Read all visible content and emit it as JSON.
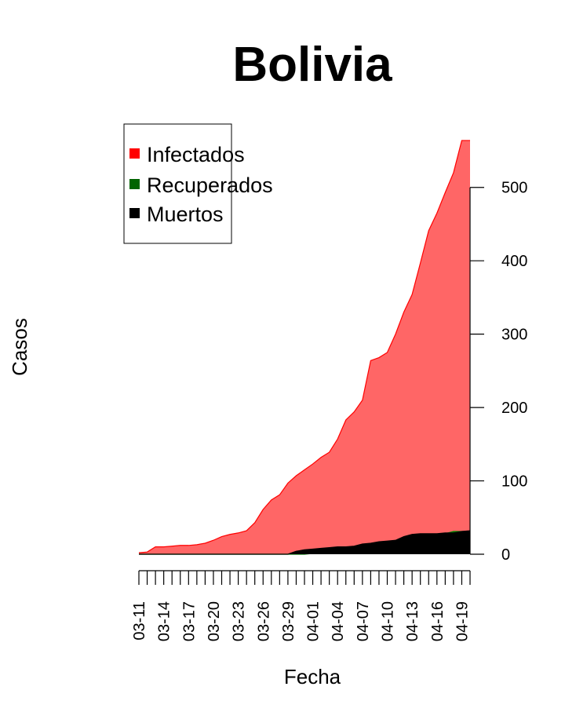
{
  "chart_data": {
    "type": "area",
    "title": "Bolivia",
    "xlabel": "Fecha",
    "ylabel": "Casos",
    "x": [
      "03-11",
      "03-12",
      "03-13",
      "03-14",
      "03-15",
      "03-16",
      "03-17",
      "03-18",
      "03-19",
      "03-20",
      "03-21",
      "03-22",
      "03-23",
      "03-24",
      "03-25",
      "03-26",
      "03-27",
      "03-28",
      "03-29",
      "03-30",
      "03-31",
      "04-01",
      "04-02",
      "04-03",
      "04-04",
      "04-05",
      "04-06",
      "04-07",
      "04-08",
      "04-09",
      "04-10",
      "04-11",
      "04-12",
      "04-13",
      "04-14",
      "04-15",
      "04-16",
      "04-17",
      "04-18",
      "04-19",
      "04-20"
    ],
    "x_tick_labels": [
      "03-11",
      "03-14",
      "03-17",
      "03-20",
      "03-23",
      "03-26",
      "03-29",
      "04-01",
      "04-04",
      "04-07",
      "04-10",
      "04-13",
      "04-16",
      "04-19"
    ],
    "y_ticks": [
      0,
      100,
      200,
      300,
      400,
      500
    ],
    "ylim": [
      0,
      565
    ],
    "y_axis_side": "right",
    "grid": false,
    "legend_position": "top-left",
    "series": [
      {
        "name": "Infectados",
        "color": "#FF0000",
        "fill": "#FF6666",
        "values": [
          2,
          3,
          10,
          10,
          11,
          12,
          12,
          13,
          15,
          19,
          24,
          27,
          29,
          32,
          43,
          61,
          74,
          81,
          97,
          107,
          115,
          123,
          132,
          139,
          157,
          183,
          194,
          210,
          264,
          268,
          275,
          300,
          330,
          354,
          397,
          441,
          465,
          493,
          520,
          564,
          564
        ]
      },
      {
        "name": "Recuperados",
        "color": "#008000",
        "fill": "#008000",
        "values": [
          0,
          0,
          0,
          0,
          0,
          0,
          0,
          0,
          0,
          0,
          0,
          0,
          0,
          0,
          0,
          0,
          0,
          0,
          0,
          0,
          0,
          1,
          1,
          1,
          1,
          1,
          1,
          1,
          1,
          1,
          1,
          1,
          1,
          1,
          5,
          10,
          18,
          28,
          31,
          31,
          31
        ]
      },
      {
        "name": "Muertos",
        "color": "#000000",
        "fill": "#000000",
        "values": [
          0,
          0,
          0,
          0,
          0,
          0,
          0,
          0,
          0,
          0,
          0,
          0,
          0,
          0,
          0,
          0,
          0,
          0,
          0,
          4,
          6,
          7,
          8,
          9,
          10,
          10,
          11,
          14,
          15,
          17,
          18,
          19,
          24,
          27,
          28,
          28,
          28,
          29,
          29,
          31,
          32
        ]
      }
    ]
  }
}
